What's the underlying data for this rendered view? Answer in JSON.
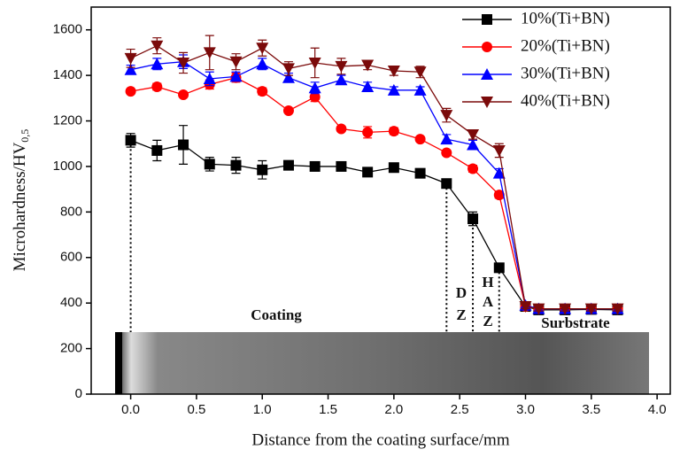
{
  "chart_data": {
    "type": "line",
    "x_label": "Distance from the coating surface/mm",
    "y_label": "Microhardness/HV",
    "y_label_sub": "0,5",
    "x": [
      0,
      0.2,
      0.4,
      0.6,
      0.8,
      1.0,
      1.2,
      1.4,
      1.6,
      1.8,
      2.0,
      2.2,
      2.4,
      2.6,
      2.8,
      3.0,
      3.1,
      3.3,
      3.5,
      3.7
    ],
    "series": [
      {
        "name": "10%(Ti+BN)",
        "color": "#000000",
        "marker": "square",
        "values": [
          1115,
          1070,
          1095,
          1010,
          1005,
          985,
          1005,
          1000,
          1000,
          975,
          995,
          970,
          925,
          770,
          555,
          385,
          370,
          370,
          372,
          370
        ],
        "errors": [
          30,
          45,
          85,
          30,
          35,
          40,
          15,
          15,
          10,
          10,
          10,
          10,
          10,
          30,
          10,
          10,
          10,
          10,
          10,
          10
        ]
      },
      {
        "name": "20%(Ti+BN)",
        "color": "#ff0000",
        "marker": "circle",
        "values": [
          1330,
          1350,
          1315,
          1360,
          1390,
          1330,
          1245,
          1305,
          1165,
          1150,
          1155,
          1120,
          1060,
          990,
          875,
          385,
          375,
          375,
          375,
          375
        ],
        "errors": [
          10,
          15,
          10,
          20,
          20,
          15,
          10,
          20,
          10,
          25,
          15,
          10,
          10,
          15,
          15,
          10,
          10,
          10,
          10,
          10
        ]
      },
      {
        "name": "30%(Ti+BN)",
        "color": "#0000ff",
        "marker": "triangle-up",
        "values": [
          1425,
          1450,
          1460,
          1385,
          1395,
          1450,
          1390,
          1345,
          1380,
          1350,
          1335,
          1335,
          1120,
          1095,
          970,
          390,
          375,
          375,
          375,
          375
        ],
        "errors": [
          20,
          25,
          30,
          30,
          20,
          25,
          20,
          25,
          20,
          20,
          15,
          15,
          20,
          20,
          20,
          10,
          10,
          10,
          10,
          10
        ]
      },
      {
        "name": "40%(Ti+BN)",
        "color": "#7b0a0a",
        "marker": "triangle-down",
        "values": [
          1475,
          1530,
          1455,
          1500,
          1460,
          1520,
          1430,
          1455,
          1440,
          1445,
          1420,
          1415,
          1225,
          1140,
          1070,
          385,
          375,
          375,
          375,
          375
        ],
        "errors": [
          40,
          35,
          45,
          75,
          35,
          35,
          30,
          65,
          35,
          20,
          20,
          25,
          30,
          20,
          30,
          10,
          10,
          10,
          10,
          10
        ]
      }
    ],
    "xlim": [
      -0.3,
      4.1
    ],
    "ylim": [
      0,
      1700
    ],
    "xticks": [
      {
        "value": 0,
        "label": "0.0"
      },
      0.5,
      {
        "value": 1,
        "label": "1.0"
      },
      1.5,
      {
        "value": 2,
        "label": "2.0"
      },
      2.5,
      {
        "value": 3,
        "label": "3.0"
      },
      3.5,
      {
        "value": 4,
        "label": "4.0"
      }
    ],
    "yticks": [
      0,
      200,
      400,
      600,
      800,
      1000,
      1200,
      1400,
      1600
    ],
    "legend": "upper-right",
    "annotations": [
      "Coating",
      "D",
      "Z",
      "H",
      "A",
      "Z",
      "Surbstrate"
    ]
  }
}
